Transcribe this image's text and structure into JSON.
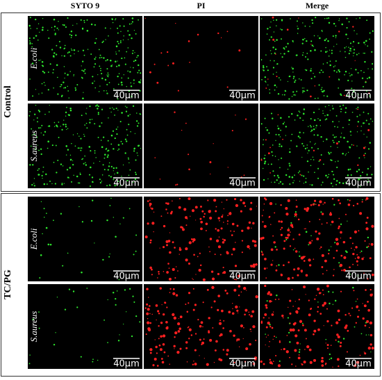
{
  "column_headers": [
    "SYTO 9",
    "PI",
    "Merge"
  ],
  "groups": [
    {
      "label": "Control",
      "rows": [
        {
          "label": "E.coli",
          "panels": [
            {
              "scale_bar": "40μm"
            },
            {
              "scale_bar": "40μm"
            },
            {
              "scale_bar": "40μm"
            }
          ]
        },
        {
          "label": "S.aureus",
          "panels": [
            {
              "scale_bar": "40μm"
            },
            {
              "scale_bar": "40μm"
            },
            {
              "scale_bar": "40μm"
            }
          ]
        }
      ]
    },
    {
      "label": "TC/PG",
      "rows": [
        {
          "label": "E.coli",
          "panels": [
            {
              "scale_bar": "40μm"
            },
            {
              "scale_bar": "40μm"
            },
            {
              "scale_bar": "40μm"
            }
          ]
        },
        {
          "label": "S.aureus",
          "panels": [
            {
              "scale_bar": "40μm"
            },
            {
              "scale_bar": "40μm"
            },
            {
              "scale_bar": "40μm"
            }
          ]
        }
      ]
    }
  ]
}
